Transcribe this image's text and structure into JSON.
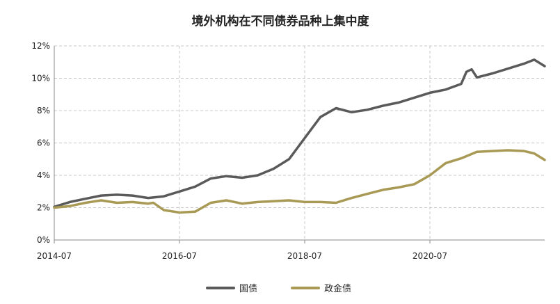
{
  "chart_data": {
    "type": "line",
    "title": "境外机构在不同债券品种上集中度",
    "xlabel": "",
    "ylabel": "",
    "xlim": [
      "2014-07",
      "2022-05"
    ],
    "ylim": [
      0,
      12
    ],
    "y_unit": "%",
    "yticks": [
      "0%",
      "2%",
      "4%",
      "6%",
      "8%",
      "10%",
      "12%"
    ],
    "xticks": [
      "2014-07",
      "2016-07",
      "2018-07",
      "2020-07"
    ],
    "grid": "dashed",
    "legend_position": "bottom",
    "series": [
      {
        "name": "国债",
        "color": "#5a5a5a",
        "points": [
          [
            "2014-07",
            2.05
          ],
          [
            "2014-10",
            2.35
          ],
          [
            "2015-01",
            2.55
          ],
          [
            "2015-04",
            2.75
          ],
          [
            "2015-07",
            2.8
          ],
          [
            "2015-10",
            2.75
          ],
          [
            "2016-01",
            2.6
          ],
          [
            "2016-04",
            2.7
          ],
          [
            "2016-07",
            3.0
          ],
          [
            "2016-10",
            3.3
          ],
          [
            "2017-01",
            3.8
          ],
          [
            "2017-04",
            3.95
          ],
          [
            "2017-07",
            3.85
          ],
          [
            "2017-10",
            4.0
          ],
          [
            "2018-01",
            4.4
          ],
          [
            "2018-04",
            5.0
          ],
          [
            "2018-07",
            6.3
          ],
          [
            "2018-10",
            7.6
          ],
          [
            "2019-01",
            8.15
          ],
          [
            "2019-04",
            7.9
          ],
          [
            "2019-07",
            8.05
          ],
          [
            "2019-10",
            8.3
          ],
          [
            "2020-01",
            8.5
          ],
          [
            "2020-04",
            8.8
          ],
          [
            "2020-07",
            9.1
          ],
          [
            "2020-10",
            9.3
          ],
          [
            "2021-01",
            9.65
          ],
          [
            "2021-02",
            10.4
          ],
          [
            "2021-03",
            10.55
          ],
          [
            "2021-04",
            10.05
          ],
          [
            "2021-07",
            10.3
          ],
          [
            "2021-10",
            10.6
          ],
          [
            "2022-01",
            10.9
          ],
          [
            "2022-03",
            11.15
          ],
          [
            "2022-05",
            10.75
          ]
        ]
      },
      {
        "name": "政金债",
        "color": "#a89a55",
        "points": [
          [
            "2014-07",
            2.0
          ],
          [
            "2014-10",
            2.1
          ],
          [
            "2015-01",
            2.3
          ],
          [
            "2015-04",
            2.45
          ],
          [
            "2015-07",
            2.3
          ],
          [
            "2015-10",
            2.35
          ],
          [
            "2016-01",
            2.25
          ],
          [
            "2016-02",
            2.3
          ],
          [
            "2016-04",
            1.85
          ],
          [
            "2016-07",
            1.7
          ],
          [
            "2016-10",
            1.75
          ],
          [
            "2017-01",
            2.3
          ],
          [
            "2017-04",
            2.45
          ],
          [
            "2017-07",
            2.25
          ],
          [
            "2017-10",
            2.35
          ],
          [
            "2018-01",
            2.4
          ],
          [
            "2018-04",
            2.45
          ],
          [
            "2018-07",
            2.35
          ],
          [
            "2018-10",
            2.35
          ],
          [
            "2019-01",
            2.3
          ],
          [
            "2019-04",
            2.6
          ],
          [
            "2019-07",
            2.85
          ],
          [
            "2019-10",
            3.1
          ],
          [
            "2020-01",
            3.25
          ],
          [
            "2020-04",
            3.45
          ],
          [
            "2020-07",
            4.0
          ],
          [
            "2020-10",
            4.75
          ],
          [
            "2021-01",
            5.05
          ],
          [
            "2021-04",
            5.45
          ],
          [
            "2021-07",
            5.5
          ],
          [
            "2021-10",
            5.55
          ],
          [
            "2022-01",
            5.5
          ],
          [
            "2022-03",
            5.35
          ],
          [
            "2022-05",
            4.95
          ]
        ]
      }
    ]
  }
}
